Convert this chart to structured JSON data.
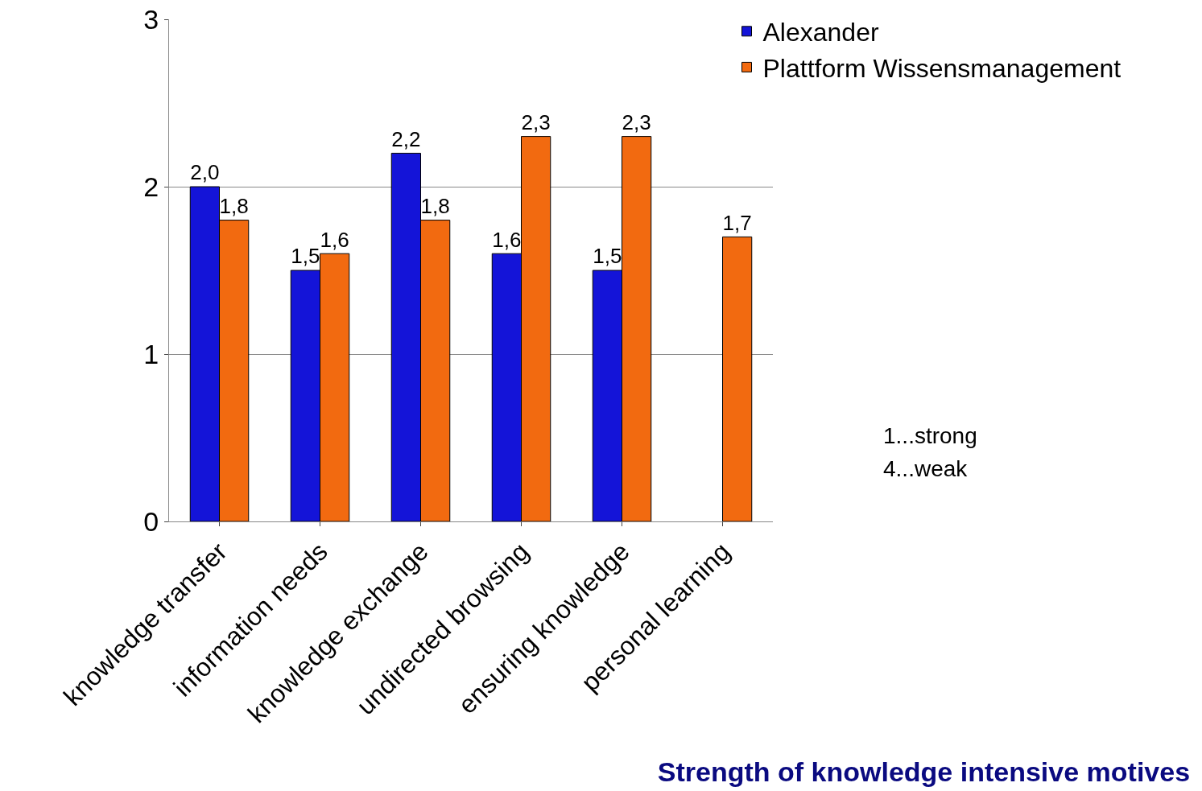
{
  "chart_data": {
    "type": "bar",
    "title": "Strength of knowledge intensive motives",
    "categories": [
      "knowledge transfer",
      "information needs",
      "knowledge exchange",
      "undirected browsing",
      "ensuring knowledge",
      "personal learning"
    ],
    "series": [
      {
        "name": "Alexander",
        "color": "#1414d8",
        "values": [
          2.0,
          1.5,
          2.2,
          1.6,
          1.5,
          null
        ],
        "value_labels": [
          "2,0",
          "1,5",
          "2,2",
          "1,6",
          "1,5",
          null
        ]
      },
      {
        "name": "Plattform Wissensmanagement",
        "color": "#f26a10",
        "values": [
          1.8,
          1.6,
          1.8,
          2.3,
          2.3,
          1.7
        ],
        "value_labels": [
          "1,8",
          "1,6",
          "1,8",
          "2,3",
          "2,3",
          "1,7"
        ]
      }
    ],
    "ylim": [
      0,
      3
    ],
    "yticks": [
      0,
      1,
      2,
      3
    ],
    "grid": "y",
    "legend": "top right",
    "annotations": [
      "1...strong",
      "4...weak"
    ]
  }
}
